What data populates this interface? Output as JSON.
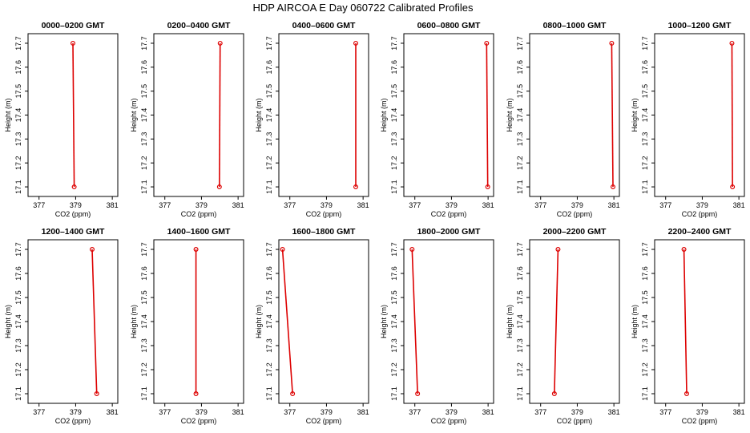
{
  "title": "HDP  AIRCOA E  Day 060722  Calibrated Profiles",
  "colors": {
    "series": "#dd0000",
    "frame": "#000000",
    "background": "#ffffff"
  },
  "chart_data": [
    {
      "type": "line",
      "title": "0000–0200 GMT",
      "xlabel": "CO2 (ppm)",
      "ylabel": "Height (m)",
      "xlim": [
        376.4,
        381.3
      ],
      "ylim": [
        17.06,
        17.74
      ],
      "xticks": [
        377,
        379,
        381
      ],
      "xticklabels": [
        "377",
        "379",
        "381"
      ],
      "yticks": [
        17.1,
        17.2,
        17.3,
        17.4,
        17.5,
        17.6,
        17.7
      ],
      "yticklabels": [
        "17.1",
        "17.2",
        "17.3",
        "17.4",
        "17.5",
        "17.6",
        "17.7"
      ],
      "series": [
        {
          "x": [
            378.85,
            378.92
          ],
          "y": [
            17.7,
            17.1
          ]
        }
      ]
    },
    {
      "type": "line",
      "title": "0200–0400 GMT",
      "xlabel": "CO2 (ppm)",
      "ylabel": "Height (m)",
      "xlim": [
        376.4,
        381.3
      ],
      "ylim": [
        17.06,
        17.74
      ],
      "xticks": [
        377,
        379,
        381
      ],
      "xticklabels": [
        "377",
        "379",
        "381"
      ],
      "yticks": [
        17.1,
        17.2,
        17.3,
        17.4,
        17.5,
        17.6,
        17.7
      ],
      "yticklabels": [
        "17.1",
        "17.2",
        "17.3",
        "17.4",
        "17.5",
        "17.6",
        "17.7"
      ],
      "series": [
        {
          "x": [
            380.02,
            379.98
          ],
          "y": [
            17.7,
            17.1
          ]
        }
      ]
    },
    {
      "type": "line",
      "title": "0400–0600 GMT",
      "xlabel": "CO2 (ppm)",
      "ylabel": "Height (m)",
      "xlim": [
        376.4,
        381.3
      ],
      "ylim": [
        17.06,
        17.74
      ],
      "xticks": [
        377,
        379,
        381
      ],
      "xticklabels": [
        "377",
        "379",
        "381"
      ],
      "yticks": [
        17.1,
        17.2,
        17.3,
        17.4,
        17.5,
        17.6,
        17.7
      ],
      "yticklabels": [
        "17.1",
        "17.2",
        "17.3",
        "17.4",
        "17.5",
        "17.6",
        "17.7"
      ],
      "series": [
        {
          "x": [
            380.6,
            380.6
          ],
          "y": [
            17.7,
            17.1
          ]
        }
      ]
    },
    {
      "type": "line",
      "title": "0600–0800 GMT",
      "xlabel": "CO2 (ppm)",
      "ylabel": "Height (m)",
      "xlim": [
        376.4,
        381.3
      ],
      "ylim": [
        17.06,
        17.74
      ],
      "xticks": [
        377,
        379,
        381
      ],
      "xticklabels": [
        "377",
        "379",
        "381"
      ],
      "yticks": [
        17.1,
        17.2,
        17.3,
        17.4,
        17.5,
        17.6,
        17.7
      ],
      "yticklabels": [
        "17.1",
        "17.2",
        "17.3",
        "17.4",
        "17.5",
        "17.6",
        "17.7"
      ],
      "series": [
        {
          "x": [
            380.92,
            380.98
          ],
          "y": [
            17.7,
            17.1
          ]
        }
      ]
    },
    {
      "type": "line",
      "title": "0800–1000 GMT",
      "xlabel": "CO2 (ppm)",
      "ylabel": "Height (m)",
      "xlim": [
        376.4,
        381.3
      ],
      "ylim": [
        17.06,
        17.74
      ],
      "xticks": [
        377,
        379,
        381
      ],
      "xticklabels": [
        "377",
        "379",
        "381"
      ],
      "yticks": [
        17.1,
        17.2,
        17.3,
        17.4,
        17.5,
        17.6,
        17.7
      ],
      "yticklabels": [
        "17.1",
        "17.2",
        "17.3",
        "17.4",
        "17.5",
        "17.6",
        "17.7"
      ],
      "series": [
        {
          "x": [
            380.88,
            380.95
          ],
          "y": [
            17.7,
            17.1
          ]
        }
      ]
    },
    {
      "type": "line",
      "title": "1000–1200 GMT",
      "xlabel": "CO2 (ppm)",
      "ylabel": "Height (m)",
      "xlim": [
        376.4,
        381.3
      ],
      "ylim": [
        17.06,
        17.74
      ],
      "xticks": [
        377,
        379,
        381
      ],
      "xticklabels": [
        "377",
        "379",
        "381"
      ],
      "yticks": [
        17.1,
        17.2,
        17.3,
        17.4,
        17.5,
        17.6,
        17.7
      ],
      "yticklabels": [
        "17.1",
        "17.2",
        "17.3",
        "17.4",
        "17.5",
        "17.6",
        "17.7"
      ],
      "series": [
        {
          "x": [
            380.62,
            380.65
          ],
          "y": [
            17.7,
            17.1
          ]
        }
      ]
    },
    {
      "type": "line",
      "title": "1200–1400 GMT",
      "xlabel": "CO2 (ppm)",
      "ylabel": "Height (m)",
      "xlim": [
        376.4,
        381.3
      ],
      "ylim": [
        17.06,
        17.74
      ],
      "xticks": [
        377,
        379,
        381
      ],
      "xticklabels": [
        "377",
        "379",
        "381"
      ],
      "yticks": [
        17.1,
        17.2,
        17.3,
        17.4,
        17.5,
        17.6,
        17.7
      ],
      "yticklabels": [
        "17.1",
        "17.2",
        "17.3",
        "17.4",
        "17.5",
        "17.6",
        "17.7"
      ],
      "series": [
        {
          "x": [
            379.9,
            380.15
          ],
          "y": [
            17.7,
            17.1
          ]
        }
      ]
    },
    {
      "type": "line",
      "title": "1400–1600 GMT",
      "xlabel": "CO2 (ppm)",
      "ylabel": "Height (m)",
      "xlim": [
        376.4,
        381.3
      ],
      "ylim": [
        17.06,
        17.74
      ],
      "xticks": [
        377,
        379,
        381
      ],
      "xticklabels": [
        "377",
        "379",
        "381"
      ],
      "yticks": [
        17.1,
        17.2,
        17.3,
        17.4,
        17.5,
        17.6,
        17.7
      ],
      "yticklabels": [
        "17.1",
        "17.2",
        "17.3",
        "17.4",
        "17.5",
        "17.6",
        "17.7"
      ],
      "series": [
        {
          "x": [
            378.7,
            378.7
          ],
          "y": [
            17.7,
            17.1
          ]
        }
      ]
    },
    {
      "type": "line",
      "title": "1600–1800 GMT",
      "xlabel": "CO2 (ppm)",
      "ylabel": "Height (m)",
      "xlim": [
        376.4,
        381.3
      ],
      "ylim": [
        17.06,
        17.74
      ],
      "xticks": [
        377,
        379,
        381
      ],
      "xticklabels": [
        "377",
        "379",
        "381"
      ],
      "yticks": [
        17.1,
        17.2,
        17.3,
        17.4,
        17.5,
        17.6,
        17.7
      ],
      "yticklabels": [
        "17.1",
        "17.2",
        "17.3",
        "17.4",
        "17.5",
        "17.6",
        "17.7"
      ],
      "series": [
        {
          "x": [
            376.6,
            377.15
          ],
          "y": [
            17.7,
            17.1
          ]
        }
      ]
    },
    {
      "type": "line",
      "title": "1800–2000 GMT",
      "xlabel": "CO2 (ppm)",
      "ylabel": "Height (m)",
      "xlim": [
        376.4,
        381.3
      ],
      "ylim": [
        17.06,
        17.74
      ],
      "xticks": [
        377,
        379,
        381
      ],
      "xticklabels": [
        "377",
        "379",
        "381"
      ],
      "yticks": [
        17.1,
        17.2,
        17.3,
        17.4,
        17.5,
        17.6,
        17.7
      ],
      "yticklabels": [
        "17.1",
        "17.2",
        "17.3",
        "17.4",
        "17.5",
        "17.6",
        "17.7"
      ],
      "series": [
        {
          "x": [
            376.85,
            377.15
          ],
          "y": [
            17.7,
            17.1
          ]
        }
      ]
    },
    {
      "type": "line",
      "title": "2000–2200 GMT",
      "xlabel": "CO2 (ppm)",
      "ylabel": "Height (m)",
      "xlim": [
        376.4,
        381.3
      ],
      "ylim": [
        17.06,
        17.74
      ],
      "xticks": [
        377,
        379,
        381
      ],
      "xticklabels": [
        "377",
        "379",
        "381"
      ],
      "yticks": [
        17.1,
        17.2,
        17.3,
        17.4,
        17.5,
        17.6,
        17.7
      ],
      "yticklabels": [
        "17.1",
        "17.2",
        "17.3",
        "17.4",
        "17.5",
        "17.6",
        "17.7"
      ],
      "series": [
        {
          "x": [
            377.95,
            377.75
          ],
          "y": [
            17.7,
            17.1
          ]
        }
      ]
    },
    {
      "type": "line",
      "title": "2200–2400 GMT",
      "xlabel": "CO2 (ppm)",
      "ylabel": "Height (m)",
      "xlim": [
        376.4,
        381.3
      ],
      "ylim": [
        17.06,
        17.74
      ],
      "xticks": [
        377,
        379,
        381
      ],
      "xticklabels": [
        "377",
        "379",
        "381"
      ],
      "yticks": [
        17.1,
        17.2,
        17.3,
        17.4,
        17.5,
        17.6,
        17.7
      ],
      "yticklabels": [
        "17.1",
        "17.2",
        "17.3",
        "17.4",
        "17.5",
        "17.6",
        "17.7"
      ],
      "series": [
        {
          "x": [
            378.0,
            378.15
          ],
          "y": [
            17.7,
            17.1
          ]
        }
      ]
    }
  ]
}
